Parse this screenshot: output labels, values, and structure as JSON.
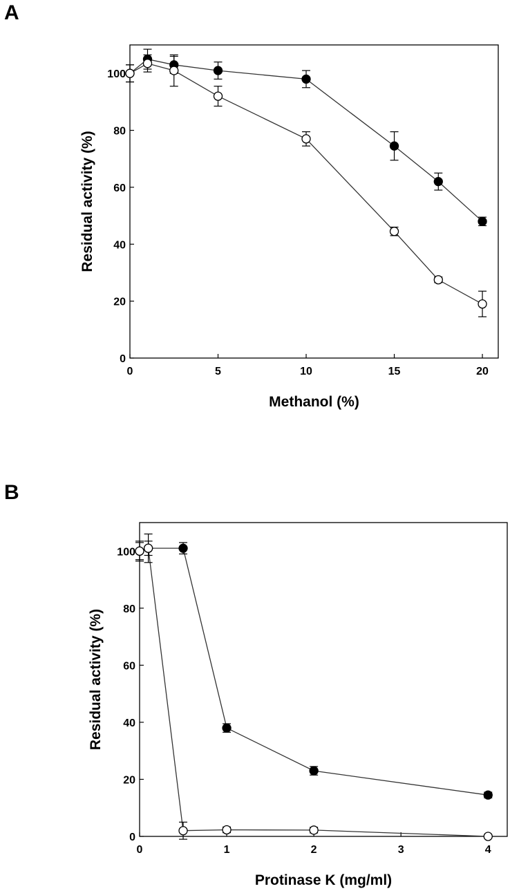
{
  "panels": {
    "a": {
      "label": "A"
    },
    "b": {
      "label": "B"
    }
  },
  "chart_data": [
    {
      "type": "line",
      "panel": "A",
      "xlabel": "Methanol (%)",
      "ylabel": "Residual activity (%)",
      "xlim": [
        0,
        20.9
      ],
      "ylim": [
        0,
        110
      ],
      "xticks": [
        0,
        5,
        10,
        15,
        20
      ],
      "yticks": [
        0,
        20,
        40,
        60,
        80,
        100
      ],
      "series": [
        {
          "marker": "filled-circle",
          "color": "#000000",
          "x": [
            0,
            1,
            2.5,
            5,
            10,
            15,
            17.5,
            20
          ],
          "y": [
            100,
            105,
            103,
            101,
            98,
            74.5,
            62,
            48
          ],
          "err": [
            3,
            3.5,
            3,
            3,
            3,
            5,
            3,
            1.5
          ]
        },
        {
          "marker": "open-circle",
          "color": "#000000",
          "x": [
            0,
            1,
            2.5,
            5,
            10,
            15,
            17.5,
            20
          ],
          "y": [
            100,
            103.5,
            101,
            92,
            77,
            44.5,
            27.5,
            19
          ],
          "err": [
            3,
            3,
            5.5,
            3.5,
            2.5,
            1.5,
            1,
            4.5
          ]
        }
      ]
    },
    {
      "type": "line",
      "panel": "B",
      "xlabel": "Protinase K (mg/ml)",
      "ylabel": "Residual activity (%)",
      "xlim": [
        0,
        4.22
      ],
      "ylim": [
        0,
        110
      ],
      "xticks": [
        0,
        1,
        2,
        3,
        4
      ],
      "yticks": [
        0,
        20,
        40,
        60,
        80,
        100
      ],
      "series": [
        {
          "marker": "filled-circle",
          "color": "#000000",
          "x": [
            0,
            0.1,
            0.5,
            1,
            2,
            4
          ],
          "y": [
            100,
            101,
            101,
            38,
            23,
            14.5
          ],
          "err": [
            3.5,
            2.5,
            2,
            1.5,
            1.5,
            1
          ]
        },
        {
          "marker": "open-circle",
          "color": "#000000",
          "x": [
            0,
            0.1,
            0.5,
            1,
            2,
            4
          ],
          "y": [
            100,
            101,
            2,
            2.3,
            2.2,
            0
          ],
          "err": [
            3,
            5,
            3,
            1,
            1,
            0.5
          ]
        }
      ]
    }
  ]
}
